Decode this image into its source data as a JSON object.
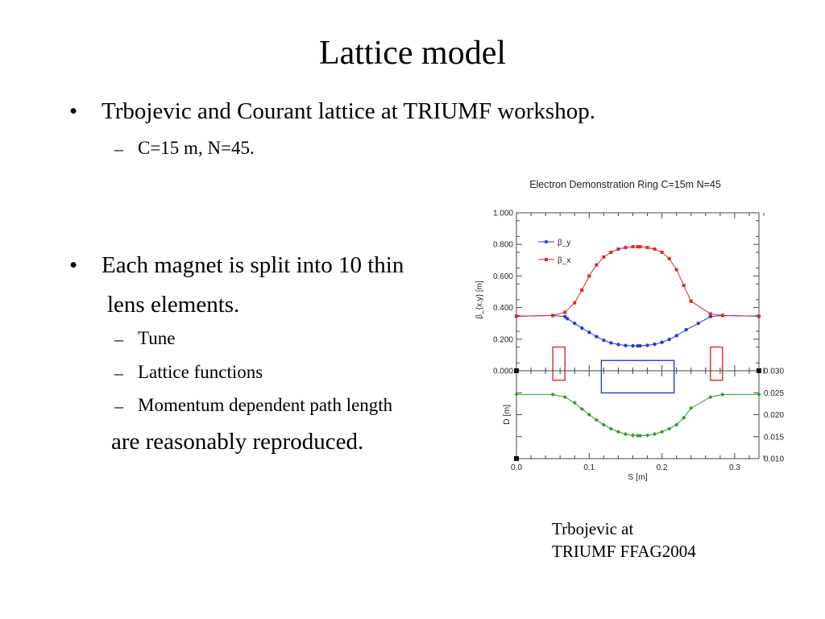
{
  "slide": {
    "title": "Lattice model",
    "bullets": [
      {
        "text": "Trbojevic and Courant lattice at TRIUMF workshop.",
        "subs": [
          "C=15 m, N=45."
        ]
      },
      {
        "line1": "Each magnet is split into 10 thin",
        "line2": "lens elements.",
        "subs": [
          "Tune",
          "Lattice functions",
          "Momentum  dependent path length"
        ],
        "tail": "are reasonably reproduced."
      }
    ],
    "bullet_symbol": "•",
    "dash_symbol": "–",
    "caption": [
      "Trbojevic at",
      "TRIUMF FFAG2004"
    ]
  },
  "chart_data": [
    {
      "type": "line",
      "title": "Electron Demonstration Ring C=15m N=45",
      "ylabel": "β_{x,y} [m]",
      "xlim": [
        0,
        0.3333
      ],
      "ylim": [
        0,
        1.0
      ],
      "yticks": [
        "0.000",
        "0.200",
        "0.400",
        "0.600",
        "0.800",
        "1.000"
      ],
      "legend": [
        "β_y",
        "β_x"
      ],
      "legend_position": "top-left",
      "colors": {
        "beta_y": "#2a3bd8",
        "beta_x": "#d62a2a",
        "magnet_f": "#d62a2a",
        "magnet_d": "#2a3bd8"
      },
      "series": [
        {
          "name": "β_y",
          "x": [
            0,
            0.05,
            0.0667,
            0.07,
            0.08,
            0.09,
            0.1,
            0.11,
            0.12,
            0.13,
            0.14,
            0.15,
            0.16,
            0.1667,
            0.17,
            0.18,
            0.19,
            0.2,
            0.21,
            0.22,
            0.2333,
            0.25,
            0.2667,
            0.2833,
            0.3333
          ],
          "y": [
            0.345,
            0.35,
            0.343,
            0.33,
            0.3,
            0.27,
            0.243,
            0.216,
            0.193,
            0.176,
            0.166,
            0.16,
            0.158,
            0.158,
            0.158,
            0.161,
            0.168,
            0.18,
            0.198,
            0.222,
            0.26,
            0.3,
            0.343,
            0.35,
            0.345
          ]
        },
        {
          "name": "β_x",
          "x": [
            0,
            0.05,
            0.0667,
            0.08,
            0.09,
            0.1,
            0.11,
            0.12,
            0.13,
            0.14,
            0.15,
            0.16,
            0.1667,
            0.17,
            0.18,
            0.19,
            0.2,
            0.21,
            0.22,
            0.23,
            0.24,
            0.2667,
            0.2833,
            0.3333
          ],
          "y": [
            0.345,
            0.35,
            0.37,
            0.43,
            0.51,
            0.6,
            0.67,
            0.72,
            0.75,
            0.77,
            0.78,
            0.785,
            0.785,
            0.785,
            0.78,
            0.77,
            0.75,
            0.71,
            0.64,
            0.54,
            0.44,
            0.36,
            0.35,
            0.345
          ]
        }
      ],
      "magnets": [
        {
          "kind": "focusing",
          "s_start": 0.05,
          "s_end": 0.0667,
          "y_low": -0.06,
          "y_high": 0.15
        },
        {
          "kind": "defocusing",
          "s_start": 0.1167,
          "s_end": 0.2167,
          "y_low": -0.14,
          "y_high": 0.065
        },
        {
          "kind": "focusing",
          "s_start": 0.2667,
          "s_end": 0.2833,
          "y_low": -0.06,
          "y_high": 0.15
        }
      ]
    },
    {
      "type": "line",
      "xlabel": "S [m]",
      "ylabel": "D [m]",
      "xlim": [
        0,
        0.3333
      ],
      "ylim": [
        0.01,
        0.03
      ],
      "xticks": [
        "0.0",
        "0.1",
        "0.2",
        "0.3"
      ],
      "yticks_right": [
        "0.010",
        "0.015",
        "0.020",
        "0.025",
        "0.030"
      ],
      "colors": {
        "D": "#2e9a2e"
      },
      "series": [
        {
          "name": "D",
          "x": [
            0,
            0.05,
            0.0667,
            0.08,
            0.09,
            0.1,
            0.11,
            0.12,
            0.13,
            0.14,
            0.15,
            0.16,
            0.1667,
            0.17,
            0.18,
            0.19,
            0.2,
            0.21,
            0.22,
            0.23,
            0.24,
            0.2667,
            0.2833,
            0.3333
          ],
          "y": [
            0.0246,
            0.0246,
            0.024,
            0.0227,
            0.0213,
            0.02,
            0.0188,
            0.0177,
            0.0168,
            0.0161,
            0.0156,
            0.0153,
            0.0152,
            0.0152,
            0.0153,
            0.0156,
            0.0161,
            0.0168,
            0.0177,
            0.0193,
            0.0215,
            0.024,
            0.0246,
            0.0246
          ]
        }
      ]
    }
  ]
}
